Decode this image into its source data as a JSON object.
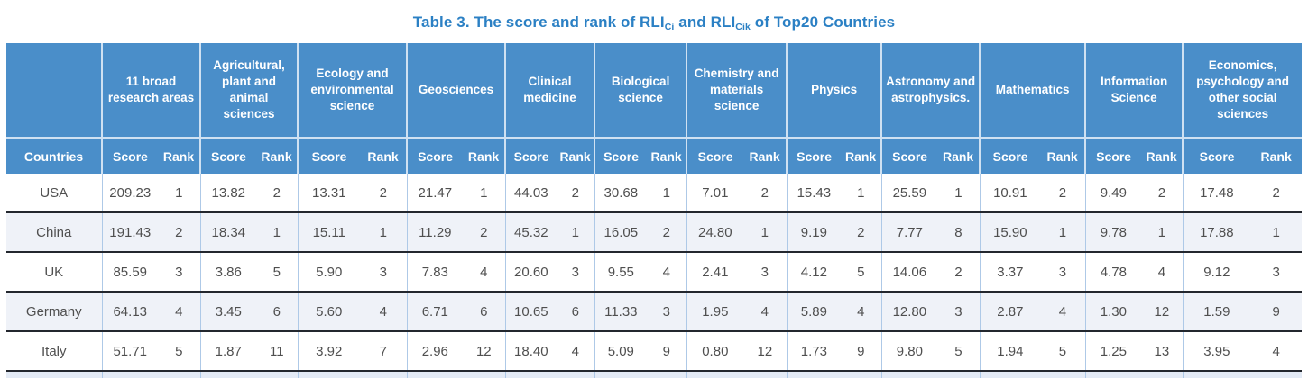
{
  "title": {
    "prefix": "Table 3. The score and rank of RLI",
    "sub1": "Ci",
    "mid": " and RLI",
    "sub2": "Cik",
    "suffix": " of Top20 Countries"
  },
  "colors": {
    "title_text": "#2b80c4",
    "header_background": "#4a8ec9",
    "header_text": "#ffffff",
    "header_divider": "#cfe1f2",
    "column_divider": "#aec9e7",
    "row_divider": "#23272e",
    "tint_row_background": "#eff2f8",
    "partial_row_background": "#e3eaf5",
    "body_text": "#4f4f4f"
  },
  "table": {
    "countries_header": "Countries",
    "score_label": "Score",
    "rank_label": "Rank",
    "groups": [
      "11 broad research areas",
      "Agricultural, plant and animal sciences",
      "Ecology and environmental science",
      "Geosciences",
      "Clinical medicine",
      "Biological science",
      "Chemistry and materials science",
      "Physics",
      "Astronomy and astrophysics.",
      "Mathematics",
      "Information Science",
      "Economics, psychology and other social sciences"
    ],
    "rows": [
      {
        "country": "USA",
        "tinted": false,
        "cells": [
          {
            "score": "209.23",
            "rank": "1"
          },
          {
            "score": "13.82",
            "rank": "2"
          },
          {
            "score": "13.31",
            "rank": "2"
          },
          {
            "score": "21.47",
            "rank": "1"
          },
          {
            "score": "44.03",
            "rank": "2"
          },
          {
            "score": "30.68",
            "rank": "1"
          },
          {
            "score": "7.01",
            "rank": "2"
          },
          {
            "score": "15.43",
            "rank": "1"
          },
          {
            "score": "25.59",
            "rank": "1"
          },
          {
            "score": "10.91",
            "rank": "2"
          },
          {
            "score": "9.49",
            "rank": "2"
          },
          {
            "score": "17.48",
            "rank": "2"
          }
        ]
      },
      {
        "country": "China",
        "tinted": true,
        "cells": [
          {
            "score": "191.43",
            "rank": "2"
          },
          {
            "score": "18.34",
            "rank": "1"
          },
          {
            "score": "15.11",
            "rank": "1"
          },
          {
            "score": "11.29",
            "rank": "2"
          },
          {
            "score": "45.32",
            "rank": "1"
          },
          {
            "score": "16.05",
            "rank": "2"
          },
          {
            "score": "24.80",
            "rank": "1"
          },
          {
            "score": "9.19",
            "rank": "2"
          },
          {
            "score": "7.77",
            "rank": "8"
          },
          {
            "score": "15.90",
            "rank": "1"
          },
          {
            "score": "9.78",
            "rank": "1"
          },
          {
            "score": "17.88",
            "rank": "1"
          }
        ]
      },
      {
        "country": "UK",
        "tinted": false,
        "cells": [
          {
            "score": "85.59",
            "rank": "3"
          },
          {
            "score": "3.86",
            "rank": "5"
          },
          {
            "score": "5.90",
            "rank": "3"
          },
          {
            "score": "7.83",
            "rank": "4"
          },
          {
            "score": "20.60",
            "rank": "3"
          },
          {
            "score": "9.55",
            "rank": "4"
          },
          {
            "score": "2.41",
            "rank": "3"
          },
          {
            "score": "4.12",
            "rank": "5"
          },
          {
            "score": "14.06",
            "rank": "2"
          },
          {
            "score": "3.37",
            "rank": "3"
          },
          {
            "score": "4.78",
            "rank": "4"
          },
          {
            "score": "9.12",
            "rank": "3"
          }
        ]
      },
      {
        "country": "Germany",
        "tinted": true,
        "cells": [
          {
            "score": "64.13",
            "rank": "4"
          },
          {
            "score": "3.45",
            "rank": "6"
          },
          {
            "score": "5.60",
            "rank": "4"
          },
          {
            "score": "6.71",
            "rank": "6"
          },
          {
            "score": "10.65",
            "rank": "6"
          },
          {
            "score": "11.33",
            "rank": "3"
          },
          {
            "score": "1.95",
            "rank": "4"
          },
          {
            "score": "5.89",
            "rank": "4"
          },
          {
            "score": "12.80",
            "rank": "3"
          },
          {
            "score": "2.87",
            "rank": "4"
          },
          {
            "score": "1.30",
            "rank": "12"
          },
          {
            "score": "1.59",
            "rank": "9"
          }
        ]
      },
      {
        "country": "Italy",
        "tinted": false,
        "cells": [
          {
            "score": "51.71",
            "rank": "5"
          },
          {
            "score": "1.87",
            "rank": "11"
          },
          {
            "score": "3.92",
            "rank": "7"
          },
          {
            "score": "2.96",
            "rank": "12"
          },
          {
            "score": "18.40",
            "rank": "4"
          },
          {
            "score": "5.09",
            "rank": "9"
          },
          {
            "score": "0.80",
            "rank": "12"
          },
          {
            "score": "1.73",
            "rank": "9"
          },
          {
            "score": "9.80",
            "rank": "5"
          },
          {
            "score": "1.94",
            "rank": "5"
          },
          {
            "score": "1.25",
            "rank": "13"
          },
          {
            "score": "3.95",
            "rank": "4"
          }
        ]
      }
    ]
  }
}
